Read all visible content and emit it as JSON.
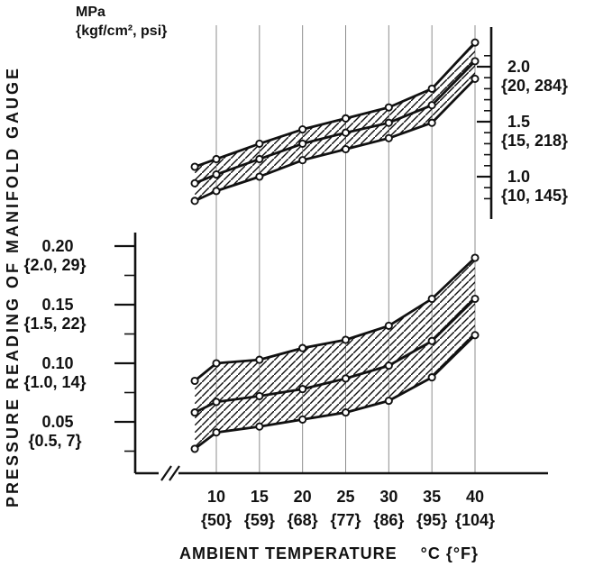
{
  "labels": {
    "unit_line1": "MPa",
    "unit_line2": "{kgf/cm², psi}",
    "y_axis_title": "PRESSURE READING OF MANIFOLD GAUGE",
    "x_axis_title": "AMBIENT TEMPERATURE",
    "x_axis_unit": "°C {°F}"
  },
  "colors": {
    "ink": "#111111",
    "grid": "#8d8d8d",
    "background": "#ffffff"
  },
  "chart_data": {
    "type": "area",
    "title": "",
    "xlabel": "AMBIENT TEMPERATURE °C {°F}",
    "ylabel": "PRESSURE READING OF MANIFOLD GAUGE",
    "pressure_units": "MPa {kgf/cm², psi}",
    "grid": "vertical-only",
    "x": [
      7.5,
      10,
      15,
      20,
      25,
      30,
      35,
      40
    ],
    "x_ticks": [
      {
        "value": 10,
        "celsius": "10",
        "fahrenheit": "{50}"
      },
      {
        "value": 15,
        "celsius": "15",
        "fahrenheit": "{59}"
      },
      {
        "value": 20,
        "celsius": "20",
        "fahrenheit": "{68}"
      },
      {
        "value": 25,
        "celsius": "25",
        "fahrenheit": "{77}"
      },
      {
        "value": 30,
        "celsius": "30",
        "fahrenheit": "{86}"
      },
      {
        "value": 35,
        "celsius": "35",
        "fahrenheit": "{95}"
      },
      {
        "value": 40,
        "celsius": "40",
        "fahrenheit": "{104}"
      }
    ],
    "right_axis": {
      "side": "right",
      "applies_to": "high-pressure-side",
      "range": [
        0.75,
        2.35
      ],
      "minor_step": 0.1,
      "ticks": [
        {
          "value": 1.0,
          "label": "1.0",
          "sub": "{10, 145}"
        },
        {
          "value": 1.5,
          "label": "1.5",
          "sub": "{15, 218}"
        },
        {
          "value": 2.0,
          "label": "2.0",
          "sub": "{20, 284}"
        }
      ]
    },
    "left_axis": {
      "side": "left",
      "applies_to": "low-pressure-side",
      "range": [
        0.005,
        0.212
      ],
      "minor_step": 0.025,
      "ticks": [
        {
          "value": 0.05,
          "label": "0.05",
          "sub": "{0.5, 7}"
        },
        {
          "value": 0.1,
          "label": "0.10",
          "sub": "{1.0, 14}"
        },
        {
          "value": 0.15,
          "label": "0.15",
          "sub": "{1.5, 22}"
        },
        {
          "value": 0.2,
          "label": "0.20",
          "sub": "{2.0, 29}"
        }
      ]
    },
    "bands": [
      {
        "name": "high-pressure-side",
        "axis": "right",
        "fill": "diagonal-hatch",
        "series": [
          {
            "name": "upper-limit",
            "values": [
              1.09,
              1.16,
              1.3,
              1.43,
              1.53,
              1.63,
              1.8,
              2.22
            ]
          },
          {
            "name": "center",
            "values": [
              0.94,
              1.02,
              1.16,
              1.3,
              1.4,
              1.49,
              1.65,
              2.05
            ]
          },
          {
            "name": "lower-limit",
            "values": [
              0.78,
              0.87,
              1.0,
              1.15,
              1.25,
              1.35,
              1.49,
              1.89
            ]
          }
        ]
      },
      {
        "name": "low-pressure-side",
        "axis": "left",
        "fill": "diagonal-hatch",
        "series": [
          {
            "name": "upper-limit",
            "values": [
              0.085,
              0.1,
              0.103,
              0.113,
              0.12,
              0.132,
              0.155,
              0.19
            ]
          },
          {
            "name": "center",
            "values": [
              0.058,
              0.067,
              0.072,
              0.078,
              0.087,
              0.098,
              0.119,
              0.155
            ]
          },
          {
            "name": "lower-limit",
            "values": [
              0.027,
              0.041,
              0.046,
              0.052,
              0.058,
              0.068,
              0.088,
              0.124
            ]
          }
        ]
      }
    ]
  }
}
